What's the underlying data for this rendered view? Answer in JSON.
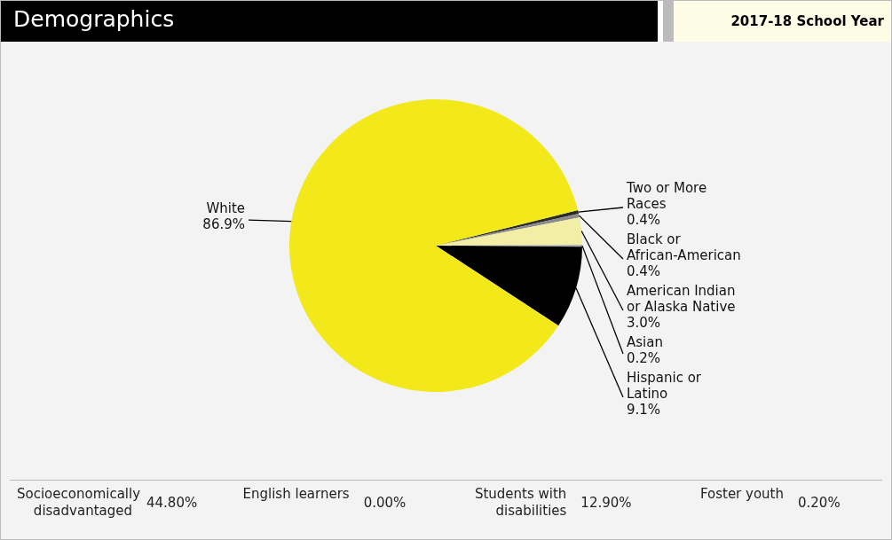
{
  "chart_data": {
    "type": "pie",
    "title": "Demographics",
    "subtitle": "2017-18 School Year",
    "categories": [
      "Two or More Races",
      "Black or African-American",
      "American Indian or Alaska Native",
      "Asian",
      "Hispanic or Latino",
      "White"
    ],
    "values": [
      0.4,
      0.4,
      3.0,
      0.2,
      9.1,
      86.9
    ],
    "colors": [
      "#2a2a2a",
      "#8a8a8a",
      "#f3eea6",
      "#b0b0b0",
      "#000000",
      "#f2e81a"
    ],
    "value_labels": [
      "0.4%",
      "0.4%",
      "3.0%",
      "0.2%",
      "9.1%",
      "86.9%"
    ],
    "legend": false,
    "annotations": [
      "Socioeconomically disadvantaged",
      "44.80%",
      "English learners",
      "0.00%",
      "Students with disabilities",
      "12.90%",
      "Foster youth",
      "0.20%"
    ]
  }
}
